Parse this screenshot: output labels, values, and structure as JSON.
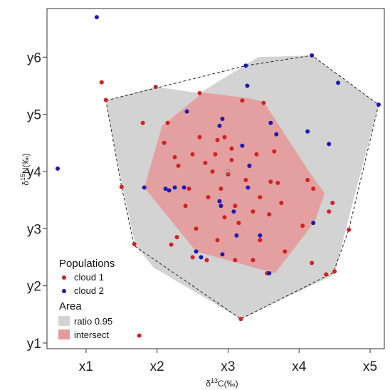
{
  "chart_data": {
    "type": "scatter",
    "title": "",
    "xlabel_pre": "δ",
    "xlabel_sup": "13",
    "xlabel_post": "C(‰)",
    "ylabel_pre": "δ",
    "ylabel_sup": "15",
    "ylabel_post": "N(‰)",
    "xlim": [
      0.45,
      5.2
    ],
    "ylim": [
      0.9,
      6.85
    ],
    "x_ticks": [
      {
        "value": 1,
        "label": "x1"
      },
      {
        "value": 2,
        "label": "x2"
      },
      {
        "value": 3,
        "label": "x3"
      },
      {
        "value": 4,
        "label": "x4"
      },
      {
        "value": 5,
        "label": "x5"
      }
    ],
    "y_ticks": [
      {
        "value": 1,
        "label": "y1"
      },
      {
        "value": 2,
        "label": "y2"
      },
      {
        "value": 3,
        "label": "y3"
      },
      {
        "value": 4,
        "label": "y4"
      },
      {
        "value": 5,
        "label": "y5"
      },
      {
        "value": 6,
        "label": "y6"
      }
    ],
    "grid": false,
    "legend": {
      "placement": "bottom-left",
      "populations_title": "Populations",
      "area_title": "Area",
      "entries": [
        {
          "label": "cloud 1",
          "color": "#d42020",
          "kind": "point"
        },
        {
          "label": "cloud 2",
          "color": "#1a1ab0",
          "kind": "point"
        },
        {
          "label": "ratio 0.95",
          "color": "#d3d3d3",
          "kind": "area"
        },
        {
          "label": "intersect",
          "color": "#e59a9a",
          "kind": "area"
        }
      ]
    },
    "hull_dashed": [
      [
        1.28,
        5.24
      ],
      [
        3.25,
        5.85
      ],
      [
        4.18,
        6.03
      ],
      [
        5.12,
        5.17
      ],
      [
        4.7,
        2.98
      ],
      [
        4.48,
        2.23
      ],
      [
        3.18,
        1.42
      ],
      [
        1.68,
        2.7
      ],
      [
        1.5,
        3.73
      ]
    ],
    "area_ratio": [
      [
        1.28,
        5.24
      ],
      [
        1.98,
        5.48
      ],
      [
        2.6,
        5.37
      ],
      [
        3.42,
        6.0
      ],
      [
        4.18,
        6.03
      ],
      [
        5.12,
        5.17
      ],
      [
        4.66,
        3.0
      ],
      [
        4.5,
        2.2
      ],
      [
        3.18,
        1.42
      ],
      [
        1.95,
        2.32
      ],
      [
        1.7,
        2.7
      ],
      [
        1.51,
        3.73
      ]
    ],
    "area_intersect": [
      [
        1.82,
        3.72
      ],
      [
        2.07,
        4.8
      ],
      [
        2.65,
        5.38
      ],
      [
        3.3,
        5.28
      ],
      [
        3.5,
        5.22
      ],
      [
        4.15,
        3.98
      ],
      [
        4.36,
        3.62
      ],
      [
        4.22,
        3.12
      ],
      [
        3.66,
        2.22
      ],
      [
        2.55,
        2.6
      ]
    ],
    "centroid": [
      3.0,
      4.0
    ],
    "series": [
      {
        "name": "cloud 1",
        "color": "#d42020",
        "points": [
          [
            1.22,
            5.56
          ],
          [
            1.28,
            5.25
          ],
          [
            1.5,
            3.73
          ],
          [
            1.68,
            2.73
          ],
          [
            1.75,
            1.13
          ],
          [
            1.8,
            4.85
          ],
          [
            1.98,
            5.48
          ],
          [
            2.1,
            4.5
          ],
          [
            2.2,
            2.72
          ],
          [
            2.28,
            2.85
          ],
          [
            2.25,
            4.25
          ],
          [
            2.15,
            4.85
          ],
          [
            2.3,
            4.1
          ],
          [
            2.45,
            3.7
          ],
          [
            2.5,
            4.3
          ],
          [
            2.55,
            3.0
          ],
          [
            2.6,
            4.6
          ],
          [
            2.6,
            5.37
          ],
          [
            2.68,
            4.15
          ],
          [
            2.72,
            3.55
          ],
          [
            2.78,
            4.0
          ],
          [
            2.82,
            4.3
          ],
          [
            2.85,
            4.55
          ],
          [
            2.9,
            3.7
          ],
          [
            2.95,
            3.2
          ],
          [
            2.95,
            4.6
          ],
          [
            3.0,
            3.95
          ],
          [
            3.05,
            4.4
          ],
          [
            3.1,
            3.4
          ],
          [
            3.15,
            3.1
          ],
          [
            3.18,
            1.42
          ],
          [
            3.2,
            5.24
          ],
          [
            3.25,
            3.85
          ],
          [
            3.3,
            4.1
          ],
          [
            3.35,
            3.3
          ],
          [
            3.4,
            4.3
          ],
          [
            3.45,
            3.55
          ],
          [
            3.5,
            5.2
          ],
          [
            3.55,
            2.22
          ],
          [
            3.58,
            3.25
          ],
          [
            3.6,
            3.82
          ],
          [
            3.65,
            4.35
          ],
          [
            3.7,
            3.8
          ],
          [
            3.75,
            3.45
          ],
          [
            3.8,
            2.6
          ],
          [
            4.05,
            3.05
          ],
          [
            4.12,
            3.85
          ],
          [
            4.18,
            2.4
          ],
          [
            4.2,
            3.7
          ],
          [
            4.38,
            2.2
          ],
          [
            4.42,
            3.3
          ],
          [
            4.47,
            3.45
          ],
          [
            4.5,
            2.25
          ],
          [
            4.7,
            2.98
          ],
          [
            3.05,
            4.2
          ],
          [
            2.4,
            3.4
          ],
          [
            2.5,
            2.5
          ],
          [
            2.7,
            2.45
          ],
          [
            3.35,
            2.45
          ],
          [
            3.45,
            2.8
          ],
          [
            2.85,
            2.8
          ],
          [
            3.1,
            2.45
          ]
        ]
      },
      {
        "name": "cloud 2",
        "color": "#1a1ab0",
        "points": [
          [
            0.6,
            4.05
          ],
          [
            1.15,
            6.7
          ],
          [
            1.82,
            3.72
          ],
          [
            2.12,
            3.7
          ],
          [
            2.17,
            3.67
          ],
          [
            2.25,
            3.72
          ],
          [
            2.42,
            5.05
          ],
          [
            2.38,
            3.72
          ],
          [
            2.55,
            2.6
          ],
          [
            2.62,
            2.5
          ],
          [
            2.88,
            4.8
          ],
          [
            2.92,
            4.92
          ],
          [
            2.88,
            3.48
          ],
          [
            2.92,
            2.55
          ],
          [
            3.08,
            3.3
          ],
          [
            3.12,
            2.88
          ],
          [
            3.25,
            5.85
          ],
          [
            3.27,
            5.5
          ],
          [
            3.28,
            3.72
          ],
          [
            3.45,
            2.88
          ],
          [
            3.58,
            2.22
          ],
          [
            3.6,
            4.85
          ],
          [
            3.68,
            4.65
          ],
          [
            4.12,
            4.7
          ],
          [
            4.18,
            6.03
          ],
          [
            4.2,
            3.1
          ],
          [
            4.42,
            4.48
          ],
          [
            4.55,
            5.55
          ],
          [
            5.12,
            5.17
          ],
          [
            3.2,
            4.45
          ],
          [
            2.9,
            3.4
          ],
          [
            3.3,
            4.1
          ]
        ]
      }
    ]
  }
}
